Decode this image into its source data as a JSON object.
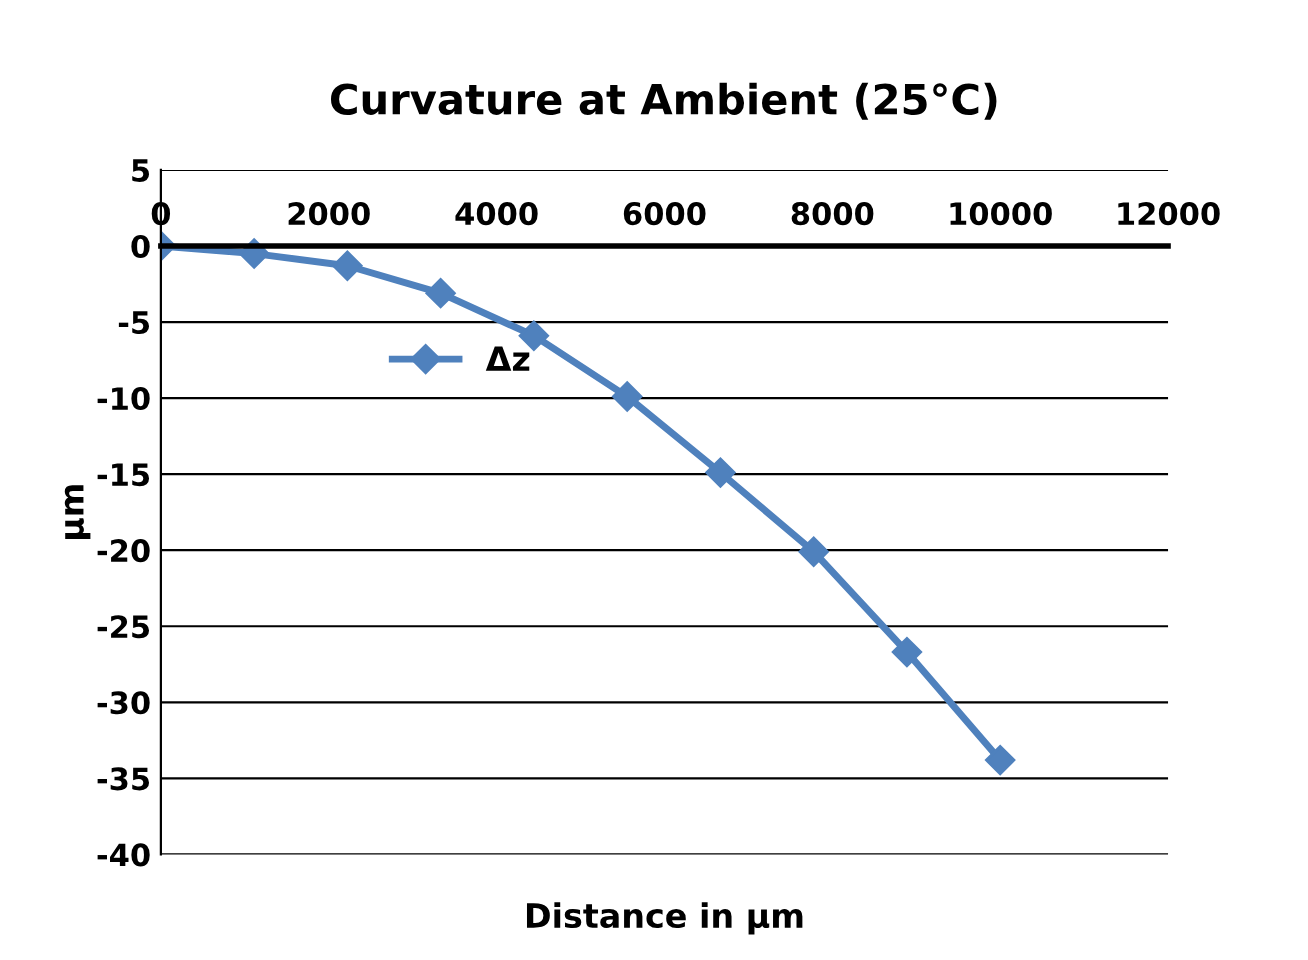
{
  "chart_data": {
    "type": "line",
    "title": "Curvature at Ambient (25°C)",
    "xlabel": "Distance in µm",
    "ylabel": "µm",
    "series": [
      {
        "name": "Δz",
        "color": "#4f81bd",
        "x": [
          0,
          1111,
          2222,
          3333,
          4444,
          5556,
          6667,
          7778,
          8889,
          10000
        ],
        "values": [
          0,
          -0.5,
          -1.3,
          -3.1,
          -5.9,
          -9.9,
          -14.9,
          -20.1,
          -26.7,
          -33.8
        ]
      }
    ],
    "xlim": [
      0,
      12000
    ],
    "xticks": [
      0,
      2000,
      4000,
      6000,
      8000,
      10000,
      12000
    ],
    "ylim": [
      -40,
      5
    ],
    "yticks": [
      5,
      0,
      -5,
      -10,
      -15,
      -20,
      -25,
      -30,
      -35,
      -40
    ],
    "grid": "y",
    "legend": "left",
    "marker": "diamond",
    "line_style": "solid"
  }
}
